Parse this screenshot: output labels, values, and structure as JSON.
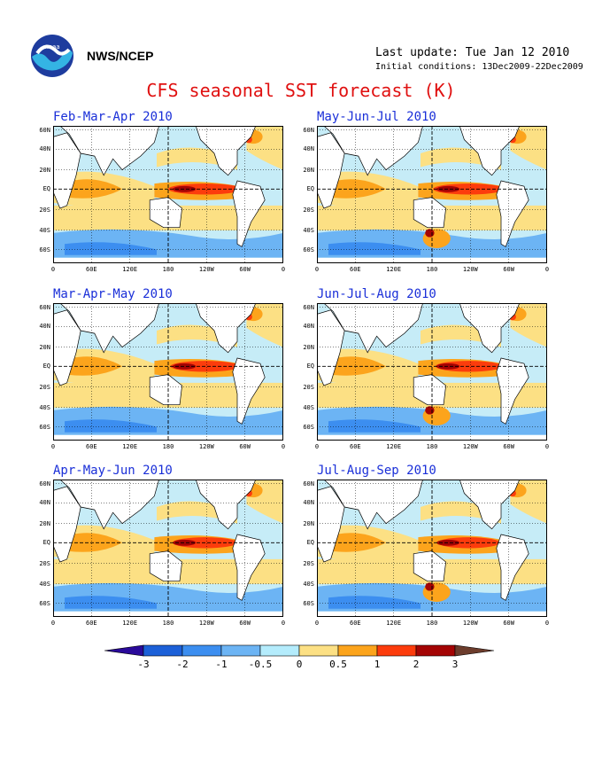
{
  "header": {
    "org": "NWS/NCEP",
    "last_update": "Last update: Tue Jan 12 2010",
    "initial_conditions": "Initial conditions: 13Dec2009-22Dec2009",
    "title": "CFS seasonal SST forecast (K)"
  },
  "panels": [
    {
      "title": "Feb-Mar-Apr 2010"
    },
    {
      "title": "May-Jun-Jul 2010"
    },
    {
      "title": "Mar-Apr-May 2010"
    },
    {
      "title": "Jun-Jul-Aug 2010"
    },
    {
      "title": "Apr-May-Jun 2010"
    },
    {
      "title": "Jul-Aug-Sep 2010"
    }
  ],
  "lat_labels": [
    "60N",
    "40N",
    "20N",
    "EQ",
    "20S",
    "40S",
    "60S"
  ],
  "lon_labels": [
    "0",
    "60E",
    "120E",
    "180",
    "120W",
    "60W",
    "0"
  ],
  "colorbar": {
    "labels": [
      "-3",
      "-2",
      "-1",
      "-0.5",
      "0",
      "0.5",
      "1",
      "2",
      "3"
    ],
    "colors": [
      "#2a0a9a",
      "#1c60d8",
      "#3c8ef0",
      "#6cb4f4",
      "#b4ecfc",
      "#fce084",
      "#fca41c",
      "#fc3c0c",
      "#a40404",
      "#6c3c2c"
    ]
  }
}
